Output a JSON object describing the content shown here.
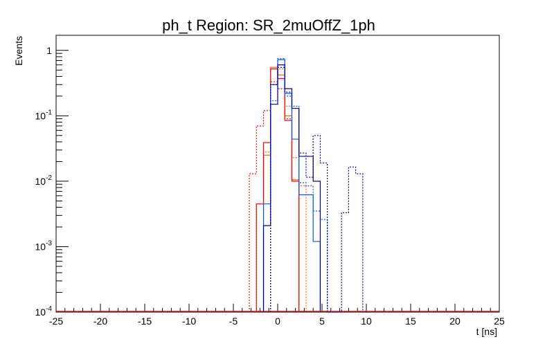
{
  "chart_data": {
    "type": "histogram-step",
    "title": "ph_t Region: SR_2muOffZ_1ph",
    "xlabel": "t [ns]",
    "ylabel": "Events",
    "xlim": [
      -25,
      25
    ],
    "ylim": [
      0.0001,
      1.7
    ],
    "yscale": "log",
    "grid": false,
    "legend": "none",
    "x_tick_labels": [
      "-25",
      "-20",
      "-15",
      "-10",
      "-5",
      "0",
      "5",
      "10",
      "15",
      "20",
      "25"
    ],
    "x_ticks": [
      -25,
      -20,
      -15,
      -10,
      -5,
      0,
      5,
      10,
      15,
      20,
      25
    ],
    "y_tick_labels": [
      {
        "base": "10",
        "exp": "-4",
        "value": 0.0001
      },
      {
        "base": "10",
        "exp": "-3",
        "value": 0.001
      },
      {
        "base": "10",
        "exp": "-2",
        "value": 0.01
      },
      {
        "base": "10",
        "exp": "-1",
        "value": 0.1
      },
      {
        "base": "1",
        "exp": "",
        "value": 1
      }
    ],
    "bin_width": 0.8,
    "series": [
      {
        "color": "#ff0000",
        "dashed": true,
        "bins": [
          [
            -3.2,
            0.013
          ],
          [
            -2.4,
            0.07
          ],
          [
            -1.6,
            0.12
          ],
          [
            -0.8,
            0.33
          ],
          [
            0.0,
            0.26
          ],
          [
            0.8,
            0.09
          ],
          [
            1.6,
            0.0105
          ]
        ]
      },
      {
        "color": "#ff6600",
        "dashed": true,
        "bins": [
          [
            -2.4,
            0.0045
          ],
          [
            -1.6,
            0.028
          ],
          [
            -0.8,
            0.3
          ],
          [
            0.0,
            0.52
          ],
          [
            0.8,
            0.14
          ],
          [
            1.6,
            0.023
          ],
          [
            2.4,
            0.0085
          ]
        ]
      },
      {
        "color": "#ff6600",
        "dashed": false,
        "bins": [
          [
            -1.6,
            0.025
          ],
          [
            -0.8,
            0.55
          ],
          [
            0.0,
            0.42
          ],
          [
            0.8,
            0.1
          ],
          [
            1.6,
            0.0105
          ]
        ]
      },
      {
        "color": "#ff0000",
        "dashed": false,
        "bins": [
          [
            -2.4,
            0.0045
          ],
          [
            -1.6,
            0.039
          ],
          [
            -0.8,
            0.52
          ],
          [
            0.0,
            0.37
          ],
          [
            0.8,
            0.085
          ],
          [
            1.6,
            0.01
          ]
        ]
      },
      {
        "color": "#0055ff",
        "dashed": true,
        "bins": [
          [
            -0.8,
            0.17
          ],
          [
            0.0,
            0.75
          ],
          [
            0.8,
            0.2
          ],
          [
            1.6,
            0.14
          ],
          [
            2.4,
            0.0095
          ],
          [
            3.2,
            0.0085
          ],
          [
            4.0,
            0.0035
          ],
          [
            4.8,
            0.0026
          ]
        ]
      },
      {
        "color": "#0055ff",
        "dashed": false,
        "bins": [
          [
            -1.6,
            0.0045
          ],
          [
            -0.8,
            0.3
          ],
          [
            0.0,
            0.72
          ],
          [
            0.8,
            0.22
          ],
          [
            1.6,
            0.044
          ],
          [
            2.4,
            0.0062
          ],
          [
            3.2,
            0.0062
          ],
          [
            4.0,
            0.0012
          ]
        ]
      },
      {
        "color": "#000099",
        "dashed": false,
        "bins": [
          [
            -1.6,
            0.0021
          ],
          [
            -0.8,
            0.15
          ],
          [
            0.0,
            0.6
          ],
          [
            0.8,
            0.26
          ],
          [
            1.6,
            0.13
          ],
          [
            2.4,
            0.024
          ],
          [
            3.2,
            0.024
          ],
          [
            4.0,
            0.01
          ]
        ]
      },
      {
        "color": "#000099",
        "dashed": true,
        "bins": [
          [
            -0.8,
            0.3
          ],
          [
            0.0,
            0.55
          ],
          [
            0.8,
            0.23
          ],
          [
            1.6,
            0.13
          ],
          [
            2.4,
            0.027
          ],
          [
            3.2,
            0.0115
          ],
          [
            4.0,
            0.05
          ],
          [
            4.8,
            0.019
          ],
          [
            5.6,
            0.0001
          ],
          [
            6.4,
            0.0001
          ],
          [
            7.2,
            0.0033
          ],
          [
            8.0,
            0.0165
          ],
          [
            8.8,
            0.013
          ],
          [
            9.6,
            0.0001
          ]
        ]
      }
    ]
  }
}
